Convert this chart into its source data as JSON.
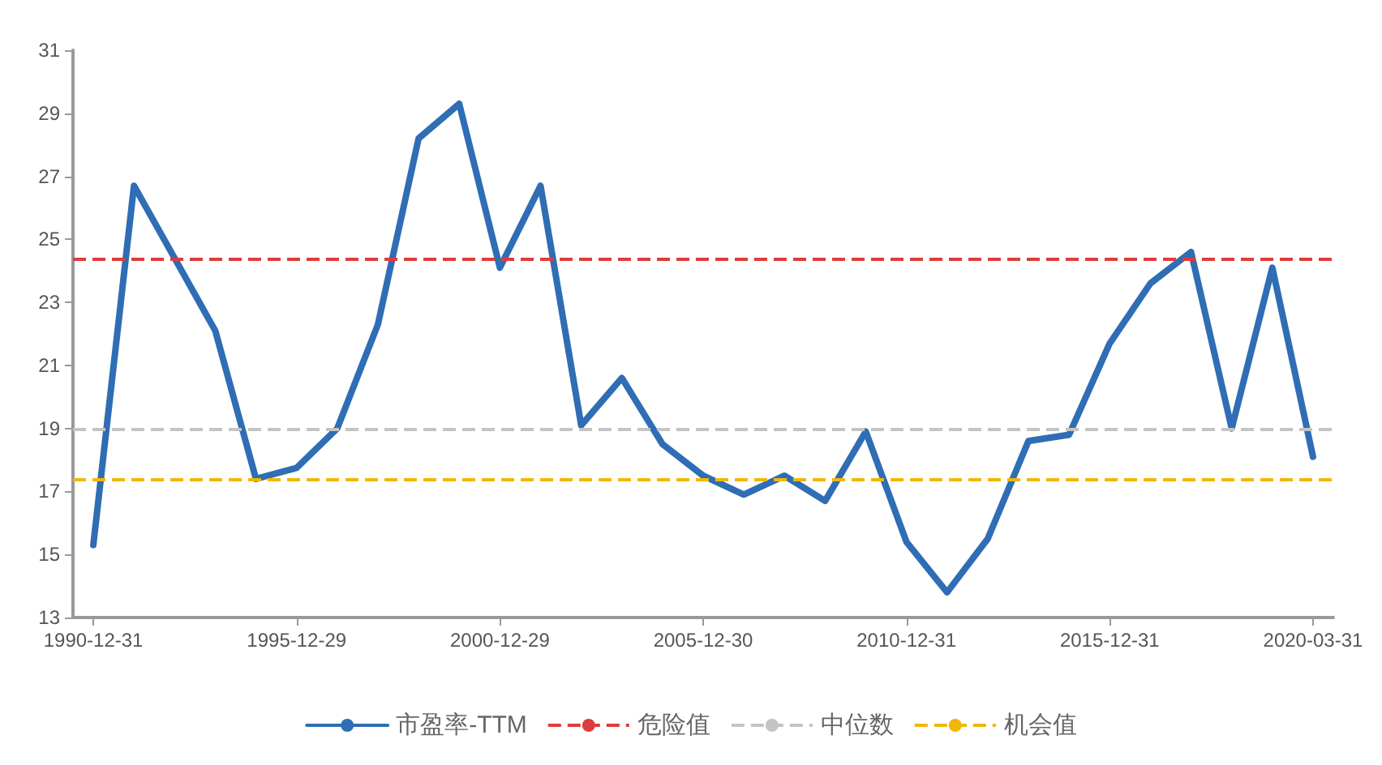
{
  "chart_data": {
    "type": "line",
    "categories": [
      "1990-12-31",
      null,
      null,
      null,
      null,
      "1995-12-29",
      null,
      null,
      null,
      null,
      "2000-12-29",
      null,
      null,
      null,
      null,
      "2005-12-30",
      null,
      null,
      null,
      null,
      "2010-12-31",
      null,
      null,
      null,
      null,
      "2015-12-31",
      null,
      null,
      null,
      null,
      "2020-03-31"
    ],
    "series": [
      {
        "name": "市盈率-TTM",
        "color": "#2f6db5",
        "values": [
          15.3,
          26.7,
          24.4,
          22.1,
          17.4,
          17.75,
          19.0,
          22.3,
          28.2,
          29.3,
          24.1,
          26.7,
          19.1,
          20.6,
          18.5,
          17.5,
          16.9,
          17.5,
          16.7,
          18.9,
          15.4,
          13.8,
          15.5,
          18.6,
          18.8,
          21.7,
          23.6,
          24.6,
          19.0,
          24.1,
          18.1
        ]
      }
    ],
    "ref_lines": [
      {
        "axis": "y",
        "value": 24.4,
        "label": "危险值",
        "color": "#e03c3c",
        "line_style": "dashed"
      },
      {
        "axis": "y",
        "value": 19.0,
        "label": "中位数",
        "color": "#c4c4c4",
        "line_style": "dashed"
      },
      {
        "axis": "y",
        "value": 17.4,
        "label": "机会值",
        "color": "#f2b705",
        "line_style": "dashed"
      }
    ],
    "ylim": [
      13,
      31
    ],
    "yticks": [
      13,
      15,
      17,
      19,
      21,
      23,
      25,
      27,
      29,
      31
    ],
    "grid": false,
    "legend": "bottom",
    "marker": "none",
    "line_style": "solid"
  }
}
